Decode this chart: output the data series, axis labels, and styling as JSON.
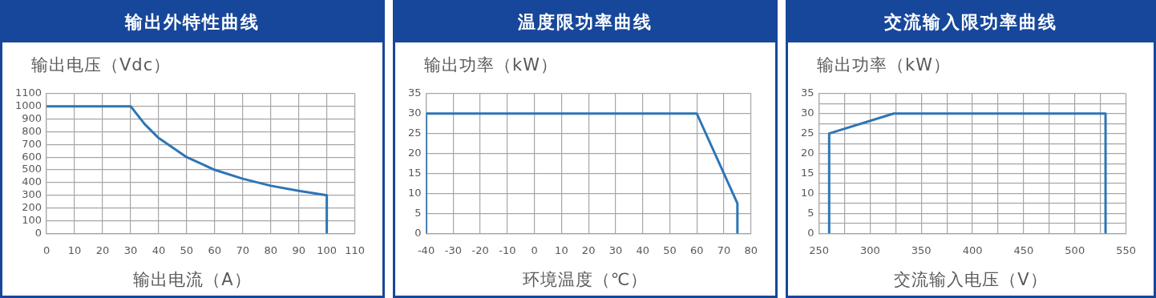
{
  "chart_data": [
    {
      "type": "line",
      "title": "输出外特性曲线",
      "xlabel": "输出电流（A）",
      "ylabel": "输出电压（Vdc）",
      "x": [
        0,
        30,
        35,
        40,
        50,
        60,
        70,
        80,
        90,
        100,
        100
      ],
      "series": [
        {
          "color": "#2e75b6",
          "values": [
            1000,
            1000,
            860,
            750,
            600,
            500,
            430,
            375,
            335,
            300,
            0
          ]
        }
      ],
      "xlim": [
        0,
        110
      ],
      "xticks": [
        0,
        10,
        20,
        30,
        40,
        50,
        60,
        70,
        80,
        90,
        100,
        110
      ],
      "ylim": [
        0,
        1100
      ],
      "yticks": [
        0,
        100,
        200,
        300,
        400,
        500,
        600,
        700,
        800,
        900,
        1000,
        1100
      ],
      "grid": true,
      "marker": "none",
      "line_style": "solid",
      "legend": false
    },
    {
      "type": "line",
      "title": "温度限功率曲线",
      "xlabel": "环境温度（℃）",
      "ylabel": "输出功率（kW）",
      "x": [
        -40,
        -40,
        60,
        75,
        75
      ],
      "series": [
        {
          "color": "#2e75b6",
          "values": [
            0,
            30,
            30,
            7.5,
            0
          ]
        }
      ],
      "xlim": [
        -40,
        80
      ],
      "xticks": [
        -40,
        -30,
        -20,
        -10,
        0,
        10,
        20,
        30,
        40,
        50,
        60,
        70,
        80
      ],
      "ylim": [
        0,
        35
      ],
      "yticks": [
        0,
        5,
        10,
        15,
        20,
        25,
        30,
        35
      ],
      "grid": true,
      "marker": "none",
      "line_style": "solid",
      "legend": false
    },
    {
      "type": "line",
      "title": "交流输入限功率曲线",
      "xlabel": "交流输入电压（V）",
      "ylabel": "输出功率（kW）",
      "x": [
        260,
        260,
        323,
        530,
        530
      ],
      "series": [
        {
          "color": "#2e75b6",
          "values": [
            0,
            25,
            30,
            30,
            0
          ]
        }
      ],
      "xlim": [
        250,
        550
      ],
      "xticks": [
        250,
        {
          "value": 275,
          "label": null
        },
        300,
        {
          "value": 325,
          "label": null
        },
        350,
        {
          "value": 375,
          "label": null
        },
        400,
        {
          "value": 425,
          "label": null
        },
        450,
        {
          "value": 475,
          "label": null
        },
        500,
        {
          "value": 525,
          "label": null
        },
        550
      ],
      "ylim": [
        0,
        35
      ],
      "yticks": [
        0,
        {
          "value": 2.5,
          "label": null
        },
        5,
        {
          "value": 7.5,
          "label": null
        },
        10,
        {
          "value": 12.5,
          "label": null
        },
        15,
        {
          "value": 17.5,
          "label": null
        },
        20,
        {
          "value": 22.5,
          "label": null
        },
        25,
        {
          "value": 27.5,
          "label": null
        },
        30,
        {
          "value": 32.5,
          "label": null
        },
        35
      ],
      "grid": true,
      "marker": "none",
      "line_style": "solid",
      "legend": false
    }
  ]
}
